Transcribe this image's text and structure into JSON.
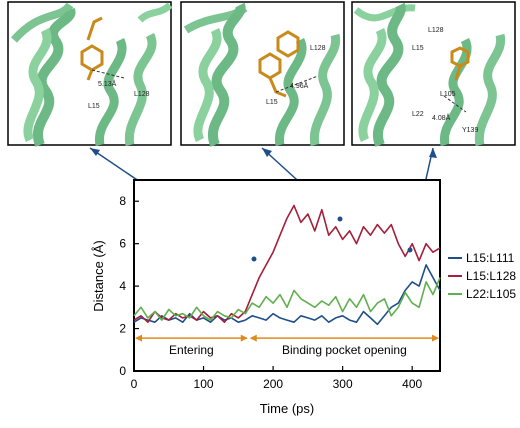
{
  "panels": [
    {
      "residue_labels": [
        "L15",
        "L128"
      ],
      "distance_label": "5.13Å"
    },
    {
      "residue_labels": [
        "L15",
        "L128"
      ],
      "distance_label": "4.96Å"
    },
    {
      "residue_labels": [
        "L128",
        "L15",
        "L105",
        "L22",
        "Y139"
      ],
      "distance_label": "4.08Å"
    }
  ],
  "chart_data": {
    "type": "line",
    "xlabel": "Time (ps)",
    "ylabel": "Distance (Å)",
    "xlim": [
      0,
      440
    ],
    "ylim": [
      0,
      9
    ],
    "xticks": [
      0,
      100,
      200,
      300,
      400
    ],
    "yticks": [
      0,
      2,
      4,
      6,
      8
    ],
    "legend_position": "right",
    "phases": [
      {
        "label": "Entering",
        "start": 0,
        "end": 165
      },
      {
        "label": "Binding pocket opening",
        "start": 165,
        "end": 440
      }
    ],
    "series": [
      {
        "name": "L15:L111",
        "color": "#1f4e8c",
        "x": [
          0,
          10,
          20,
          30,
          40,
          50,
          60,
          70,
          80,
          90,
          100,
          110,
          120,
          130,
          140,
          150,
          160,
          170,
          180,
          190,
          200,
          210,
          220,
          230,
          240,
          250,
          260,
          270,
          280,
          290,
          300,
          310,
          320,
          330,
          340,
          350,
          360,
          370,
          380,
          390,
          400,
          410,
          420,
          430,
          440
        ],
        "y": [
          2.3,
          2.5,
          2.4,
          2.3,
          2.6,
          2.4,
          2.5,
          2.3,
          2.7,
          2.4,
          2.5,
          2.3,
          2.6,
          2.4,
          2.5,
          2.3,
          2.4,
          2.6,
          2.5,
          2.4,
          2.7,
          2.5,
          2.4,
          2.3,
          2.6,
          2.5,
          2.4,
          2.6,
          2.3,
          2.5,
          2.6,
          2.4,
          2.3,
          2.8,
          2.5,
          2.2,
          2.6,
          3.0,
          3.2,
          3.8,
          4.2,
          4.0,
          5.0,
          4.4,
          3.8
        ]
      },
      {
        "name": "L15:L128",
        "color": "#a31f3a",
        "x": [
          0,
          10,
          20,
          30,
          40,
          50,
          60,
          70,
          80,
          90,
          100,
          110,
          120,
          130,
          140,
          150,
          160,
          170,
          180,
          190,
          200,
          210,
          220,
          230,
          240,
          250,
          260,
          270,
          280,
          290,
          300,
          310,
          320,
          330,
          340,
          350,
          360,
          370,
          380,
          390,
          400,
          410,
          420,
          430,
          440
        ],
        "y": [
          2.4,
          2.6,
          2.3,
          2.8,
          2.5,
          2.4,
          2.7,
          2.5,
          2.6,
          2.4,
          2.8,
          2.5,
          2.6,
          2.3,
          2.7,
          2.5,
          2.8,
          3.6,
          4.4,
          5.0,
          5.6,
          6.4,
          7.2,
          7.8,
          7.0,
          7.4,
          6.6,
          7.6,
          6.4,
          6.8,
          6.2,
          6.6,
          6.0,
          6.8,
          6.4,
          6.9,
          6.5,
          6.9,
          6.0,
          5.4,
          6.0,
          5.2,
          6.0,
          5.6,
          5.8
        ]
      },
      {
        "name": "L22:L105",
        "color": "#5fb04f",
        "x": [
          0,
          10,
          20,
          30,
          40,
          50,
          60,
          70,
          80,
          90,
          100,
          110,
          120,
          130,
          140,
          150,
          160,
          170,
          180,
          190,
          200,
          210,
          220,
          230,
          240,
          250,
          260,
          270,
          280,
          290,
          300,
          310,
          320,
          330,
          340,
          350,
          360,
          370,
          380,
          390,
          400,
          410,
          420,
          430,
          440
        ],
        "y": [
          2.6,
          3.0,
          2.5,
          2.8,
          2.4,
          2.9,
          2.6,
          2.7,
          2.5,
          3.0,
          2.6,
          2.4,
          2.8,
          2.6,
          2.5,
          2.9,
          2.7,
          3.2,
          3.0,
          3.5,
          3.2,
          3.6,
          3.0,
          3.8,
          3.4,
          3.2,
          3.0,
          3.3,
          3.1,
          3.5,
          2.8,
          3.4,
          3.0,
          3.6,
          2.8,
          3.2,
          3.4,
          2.6,
          3.0,
          3.7,
          3.2,
          3.0,
          4.2,
          3.6,
          4.4
        ]
      }
    ]
  }
}
